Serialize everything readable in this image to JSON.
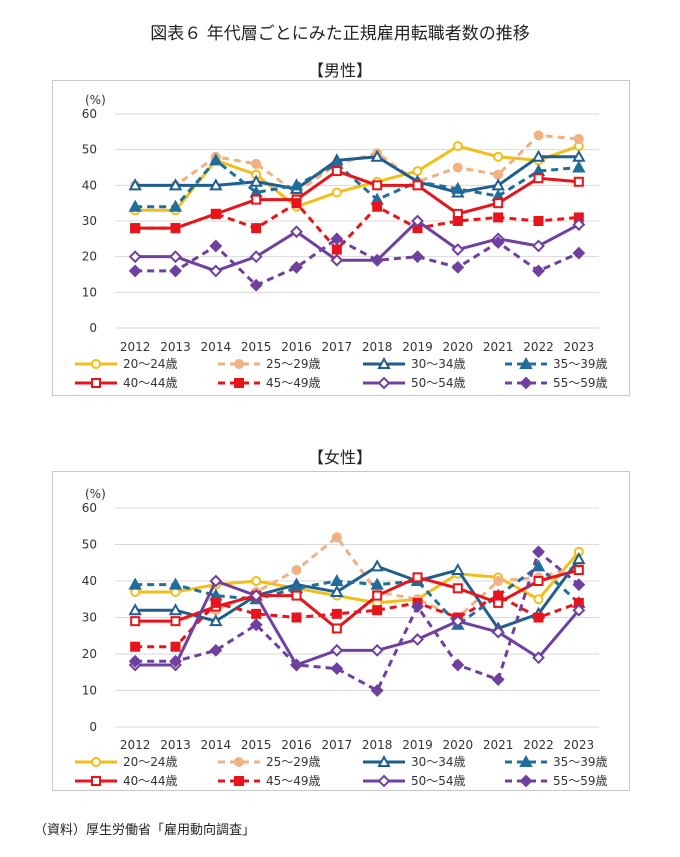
{
  "figure_title": "図表６ 年代層ごとにみた正規雇用転職者数の推移",
  "source": "（資料）厚生労働省「雇用動向調査」",
  "chart_data": [
    {
      "type": "line",
      "title": "【男性】",
      "ylabel": "(%)",
      "ylim": [
        0,
        60
      ],
      "yticks": [
        0,
        10,
        20,
        30,
        40,
        50,
        60
      ],
      "grid": true,
      "legend": "bottom",
      "x": [
        "2012",
        "2013",
        "2014",
        "2015",
        "2016",
        "2017",
        "2018",
        "2019",
        "2020",
        "2021",
        "2022",
        "2023"
      ],
      "series": [
        {
          "name": "20～24歳",
          "color": "#f2be18",
          "dash": "solid",
          "marker": "circle-open",
          "values": [
            33,
            33,
            47,
            43,
            34,
            38,
            41,
            44,
            51,
            48,
            47,
            51
          ]
        },
        {
          "name": "25～29歳",
          "color": "#f0b183",
          "dash": "dashed",
          "marker": "circle-filled",
          "values": [
            40,
            40,
            48,
            46,
            38,
            46,
            49,
            41,
            45,
            43,
            54,
            53
          ]
        },
        {
          "name": "30～34歳",
          "color": "#1f5e8e",
          "dash": "solid",
          "marker": "triangle-open",
          "values": [
            40,
            40,
            40,
            41,
            39,
            47,
            48,
            41,
            38,
            40,
            48,
            48
          ]
        },
        {
          "name": "35～39歳",
          "color": "#1f6e9c",
          "dash": "dashed",
          "marker": "triangle-filled",
          "values": [
            34,
            34,
            47,
            38,
            40,
            46,
            36,
            41,
            39,
            37,
            44,
            45
          ]
        },
        {
          "name": "40～44歳",
          "color": "#e8141b",
          "dash": "solid",
          "marker": "square-open",
          "values": [
            28,
            28,
            32,
            36,
            36,
            44,
            40,
            40,
            32,
            35,
            42,
            41
          ]
        },
        {
          "name": "45～49歳",
          "color": "#e8141b",
          "dash": "dashed",
          "marker": "square-filled",
          "values": [
            28,
            28,
            32,
            28,
            35,
            22,
            34,
            28,
            30,
            31,
            30,
            31
          ]
        },
        {
          "name": "50～54歳",
          "color": "#7040a0",
          "dash": "solid",
          "marker": "diamond-open",
          "values": [
            20,
            20,
            16,
            20,
            27,
            19,
            19,
            30,
            22,
            25,
            23,
            29
          ]
        },
        {
          "name": "55～59歳",
          "color": "#7040a0",
          "dash": "dashed",
          "marker": "diamond-filled",
          "values": [
            16,
            16,
            23,
            12,
            17,
            25,
            19,
            20,
            17,
            24,
            16,
            21
          ]
        }
      ]
    },
    {
      "type": "line",
      "title": "【女性】",
      "ylabel": "(%)",
      "ylim": [
        0,
        60
      ],
      "yticks": [
        0,
        10,
        20,
        30,
        40,
        50,
        60
      ],
      "grid": true,
      "legend": "bottom",
      "x": [
        "2012",
        "2013",
        "2014",
        "2015",
        "2016",
        "2017",
        "2018",
        "2019",
        "2020",
        "2021",
        "2022",
        "2023"
      ],
      "series": [
        {
          "name": "20～24歳",
          "color": "#f2be18",
          "dash": "solid",
          "marker": "circle-open",
          "values": [
            37,
            37,
            39,
            40,
            38,
            36,
            34,
            35,
            42,
            41,
            35,
            48
          ]
        },
        {
          "name": "25～29歳",
          "color": "#f0b183",
          "dash": "dashed",
          "marker": "circle-filled",
          "values": [
            29,
            29,
            32,
            37,
            43,
            52,
            37,
            35,
            30,
            40,
            41,
            44
          ]
        },
        {
          "name": "30～34歳",
          "color": "#1f5e8e",
          "dash": "solid",
          "marker": "triangle-open",
          "values": [
            32,
            32,
            29,
            36,
            39,
            37,
            44,
            40,
            43,
            27,
            31,
            46
          ]
        },
        {
          "name": "35～39歳",
          "color": "#1f6e9c",
          "dash": "dashed",
          "marker": "triangle-filled",
          "values": [
            39,
            39,
            36,
            35,
            38,
            40,
            39,
            40,
            28,
            36,
            44,
            34
          ]
        },
        {
          "name": "40～44歳",
          "color": "#e8141b",
          "dash": "solid",
          "marker": "square-open",
          "values": [
            29,
            29,
            33,
            36,
            36,
            27,
            36,
            41,
            38,
            34,
            40,
            43
          ]
        },
        {
          "name": "45～49歳",
          "color": "#e8141b",
          "dash": "dashed",
          "marker": "square-filled",
          "values": [
            22,
            22,
            34,
            31,
            30,
            31,
            32,
            34,
            30,
            36,
            30,
            34
          ]
        },
        {
          "name": "50～54歳",
          "color": "#7040a0",
          "dash": "solid",
          "marker": "diamond-open",
          "values": [
            17,
            17,
            40,
            36,
            17,
            21,
            21,
            24,
            29,
            26,
            19,
            32
          ]
        },
        {
          "name": "55～59歳",
          "color": "#7040a0",
          "dash": "dashed",
          "marker": "diamond-filled",
          "values": [
            18,
            18,
            21,
            28,
            17,
            16,
            10,
            33,
            17,
            13,
            48,
            39
          ]
        }
      ]
    }
  ]
}
